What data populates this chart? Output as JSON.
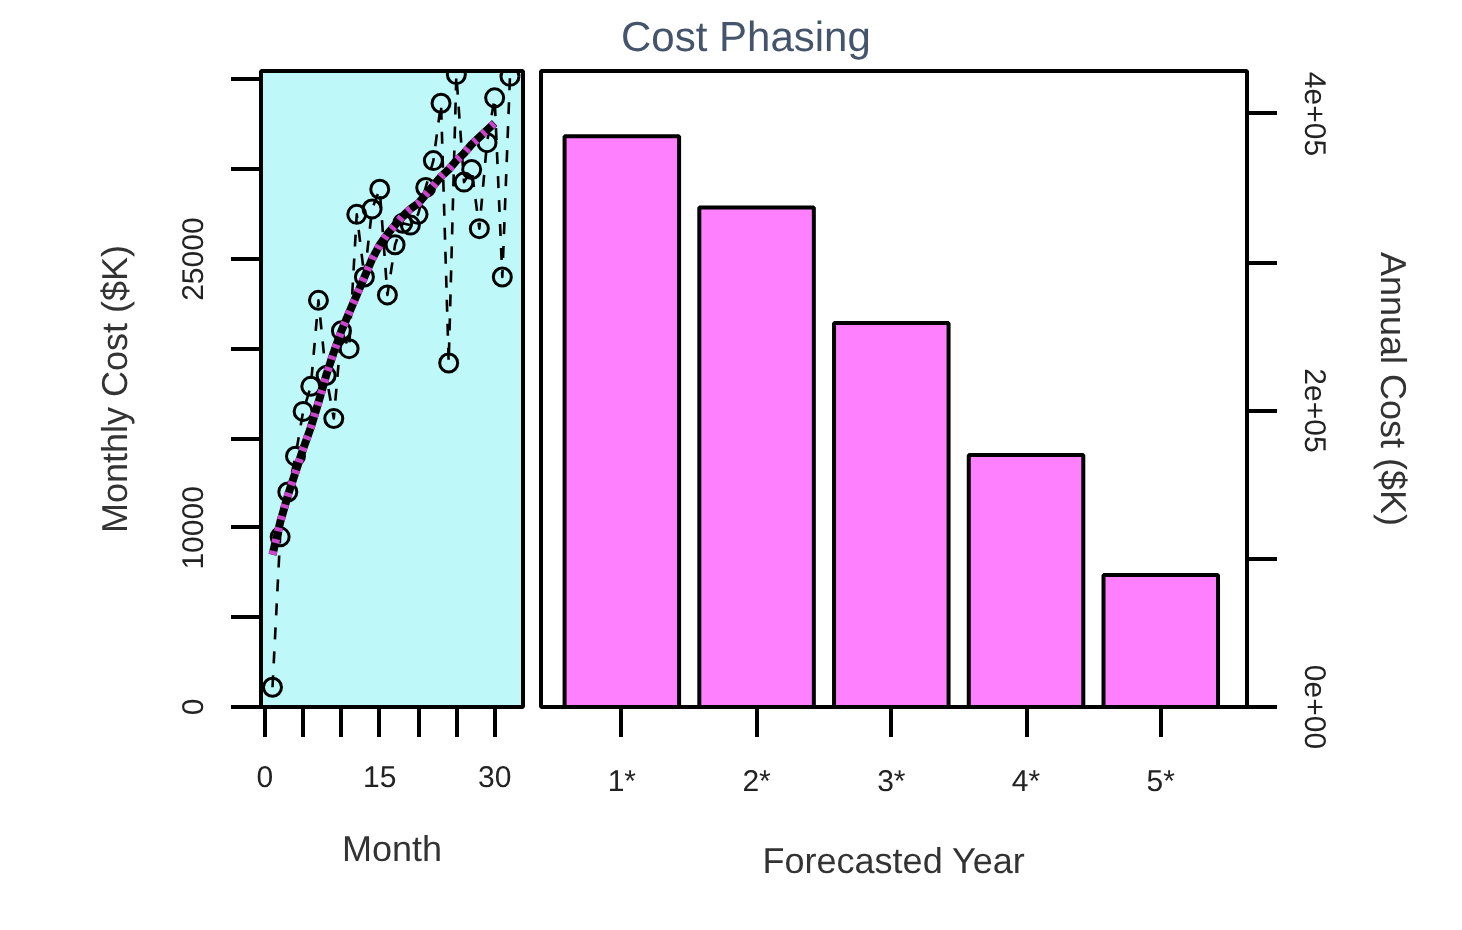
{
  "chart_data": [
    {
      "type": "line",
      "xlabel": "Month",
      "ylabel": "Monthly Cost ($K)",
      "xlim": [
        -0.5,
        33.7
      ],
      "ylim": [
        0,
        35500
      ],
      "xticks": [
        0,
        {
          "value": 5,
          "label": null
        },
        {
          "value": 10,
          "label": null
        },
        15,
        {
          "value": 20,
          "label": null
        },
        {
          "value": 25,
          "label": null
        },
        30
      ],
      "yticks": [
        0,
        {
          "value": 5000,
          "label": null
        },
        10000,
        {
          "value": 15000,
          "label": null
        },
        {
          "value": 20000,
          "label": null
        },
        25000,
        {
          "value": 30000,
          "label": null
        },
        {
          "value": 35000,
          "label": null
        }
      ],
      "grid": false,
      "series": [
        {
          "color": "#000000",
          "marker": "circle",
          "line_style": "dashed",
          "x": [
            1,
            2,
            3,
            4,
            5,
            6,
            7,
            8,
            9,
            10,
            11,
            12,
            13,
            14,
            15,
            16,
            17,
            18,
            19,
            20,
            21,
            22,
            23,
            24,
            25,
            26,
            27,
            28,
            29,
            30,
            31,
            32
          ],
          "values": [
            1100,
            9500,
            12000,
            14000,
            16500,
            17900,
            22700,
            18500,
            16100,
            21000,
            20000,
            27500,
            24000,
            27800,
            28900,
            23000,
            25800,
            27000,
            26900,
            27500,
            29000,
            30500,
            33700,
            19200,
            35300,
            29300,
            30000,
            26700,
            31500,
            34000,
            24000,
            35200
          ]
        },
        {
          "color": "#000000",
          "line_style": "solid",
          "x": [
            1,
            2,
            3,
            4,
            5,
            6,
            7,
            8,
            9,
            10,
            11,
            12,
            13,
            14,
            15,
            16,
            17,
            18,
            19,
            20,
            21,
            22,
            23,
            24,
            25,
            26,
            27,
            28,
            29,
            30
          ],
          "values": [
            8500,
            10300,
            11800,
            13100,
            14400,
            15600,
            17000,
            18500,
            19800,
            21000,
            22000,
            23000,
            24000,
            25000,
            25800,
            26400,
            26900,
            27400,
            27800,
            28100,
            28600,
            29100,
            29600,
            30000,
            30500,
            30900,
            31400,
            31800,
            32200,
            32600
          ]
        },
        {
          "color": "#cc44cc",
          "line_style": "dotted",
          "x": [
            1,
            2,
            3,
            4,
            5,
            6,
            7,
            8,
            9,
            10,
            11,
            12,
            13,
            14,
            15,
            16,
            17,
            18,
            19,
            20,
            21,
            22,
            23,
            24,
            25,
            26,
            27,
            28,
            29,
            30
          ],
          "values": [
            8500,
            10300,
            11800,
            13100,
            14400,
            15600,
            17000,
            18500,
            19800,
            21000,
            22000,
            23000,
            24000,
            25000,
            25800,
            26400,
            26900,
            27400,
            27800,
            28100,
            28600,
            29100,
            29600,
            30000,
            30500,
            30900,
            31400,
            31800,
            32200,
            32600
          ]
        }
      ]
    },
    {
      "type": "bar",
      "title": "Cost Phasing",
      "xlabel": "Forecasted Year",
      "y2label": "Annual Cost ($K)",
      "categories": [
        "1*",
        "2*",
        "3*",
        "4*",
        "5*"
      ],
      "y2lim": [
        0,
        429000
      ],
      "y2ticks": [
        {
          "value": 0,
          "label": "0e+00"
        },
        {
          "value": 100000,
          "label": null
        },
        {
          "value": 200000,
          "label": "2e+05"
        },
        {
          "value": 300000,
          "label": null
        },
        {
          "value": 400000,
          "label": "4e+05"
        }
      ],
      "grid": false,
      "series": [
        {
          "color": "#ff80ff",
          "axis": "y2",
          "values": [
            385000,
            337000,
            259000,
            170000,
            89000
          ]
        }
      ]
    }
  ]
}
